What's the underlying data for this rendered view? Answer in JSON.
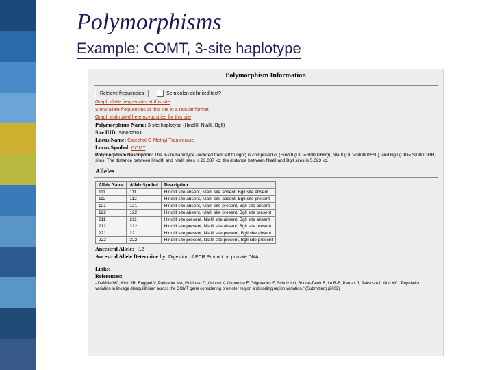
{
  "slide": {
    "title": "Polymorphisms",
    "subtitle": "Example: COMT, 3-site haplotype"
  },
  "app": {
    "title": "Polymorphism Information",
    "retrieve_btn": "Retrieve frequencies",
    "semicolon_label": "Semicolon delimited text?",
    "links": {
      "graph_allele": "Graph allele frequencies at this site",
      "show_tabular": "Show allele frequencies at this site in a tabular format",
      "graph_het": "Graph estimated heterozygosities for this site"
    },
    "fields": {
      "poly_name_label": "Polymorphism Name:",
      "poly_name_value": "3-site haplotype (HindIII, NlaIII, BglI)",
      "site_uid_label": "Site UID:",
      "site_uid_value": "SI000270J",
      "locus_name_label": "Locus Name:",
      "locus_name_value": "Catechol-O-Methyl Transferase",
      "locus_symbol_label": "Locus Symbol:",
      "locus_symbol_value": "COMT",
      "poly_desc_label": "Polymorphism Description:",
      "poly_desc_value": "The 3-site haplotype (ordered from left to right) is comprised of (HindIII (UID=SI000268Q), NlaIII (UID=SI000155L), and BglI (UID= SI000193H) sites. The distance between HindIII and NlaIII sites is 23.087 kb; the distance between NlaIII and BglI sites is 5.023 kb."
    },
    "alleles_section": "Alleles",
    "allele_table": {
      "headers": [
        "Allele Name",
        "Allele Symbol",
        "Description"
      ],
      "rows": [
        [
          "111",
          "111",
          "HindIII site absent, NlaIII site absent, BglI site absent"
        ],
        [
          "112",
          "112",
          "HindIII site absent, NlaIII site absent, BglI site present"
        ],
        [
          "121",
          "121",
          "HindIII site absent, NlaIII site present, BglI site absent"
        ],
        [
          "122",
          "122",
          "HindIII site absent, NlaIII site present, BglI site present"
        ],
        [
          "211",
          "211",
          "HindIII site present, NlaIII site absent, BglI site absent"
        ],
        [
          "212",
          "212",
          "HindIII site present, NlaIII site absent, BglI site present"
        ],
        [
          "221",
          "221",
          "HindIII site present, NlaIII site present, BglI site absent"
        ],
        [
          "222",
          "222",
          "HindIII site present, NlaIII site present, BglI site present"
        ]
      ]
    },
    "ancestral_allele_label": "Ancestral Allele:",
    "ancestral_allele_value": "H12",
    "ancestral_det_label": "Ancestral Allele Determine by:",
    "ancestral_det_value": "Digestion of PCR Product on primate DNA",
    "links_label": "Links:",
    "refs_label": "References:",
    "refs_text": "- DeMille MC, Kidd JR, Ruggeri V, Palmatier MA, Goldman D, Odunsi K, Okonofua F, Grigorenko E, Schulz LO, Bonne-Tamir B, Lu R-B, Parnas J, Pakstis AJ, Kidd KK. \"Population variation in linkage disequilibrium across the COMT gene considering promoter region and coding region variation.\" (Submitted) (2002)"
  },
  "colors": {
    "link": "#a43a1a",
    "title": "#1a1a5a",
    "bg_app": "#ededed"
  }
}
